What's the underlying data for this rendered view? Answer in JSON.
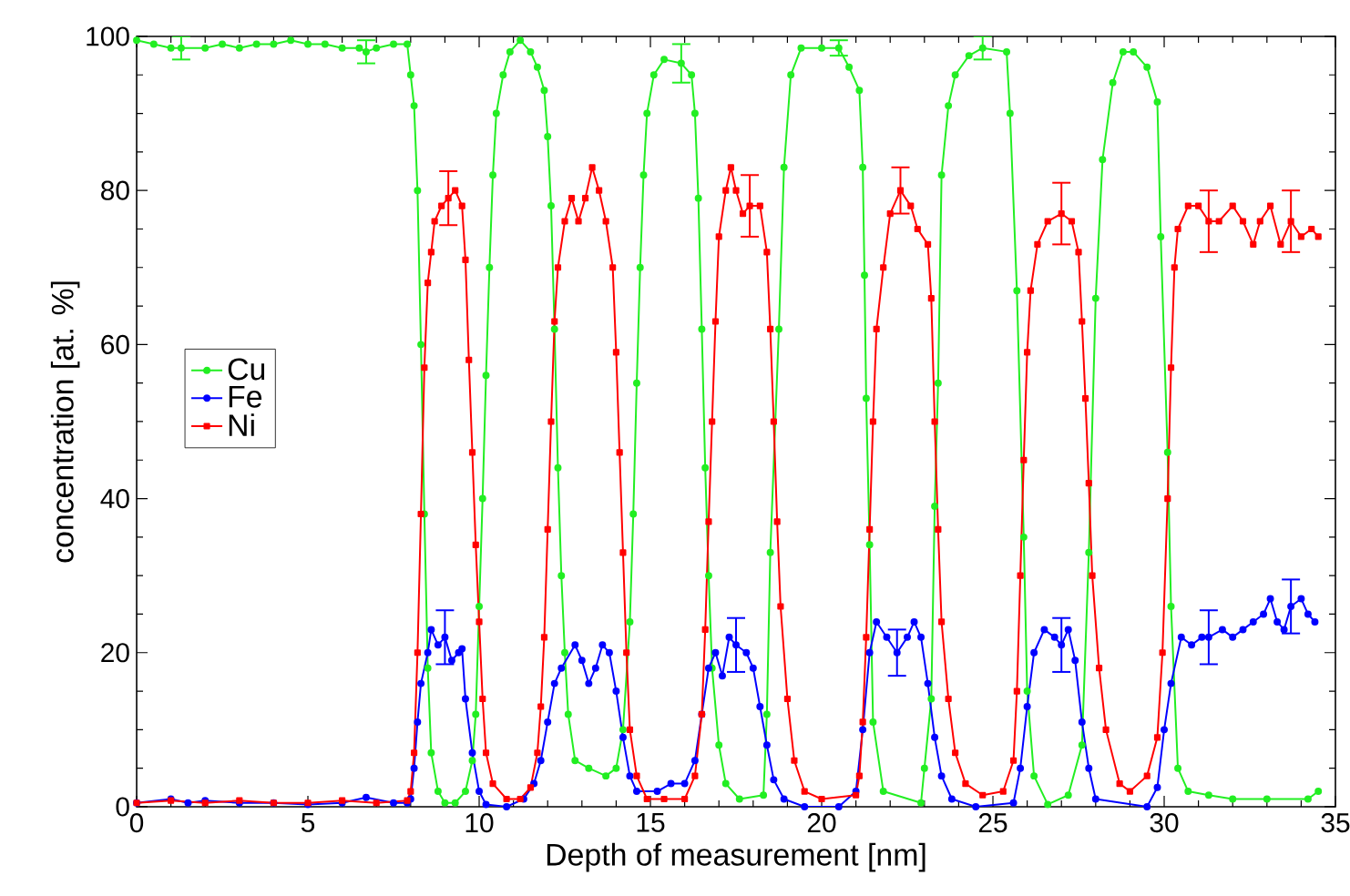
{
  "chart_data": {
    "type": "line",
    "xlabel": "Depth of measurement [nm]",
    "ylabel": "concentration [at. %]",
    "xlim": [
      0,
      35
    ],
    "ylim": [
      0,
      100
    ],
    "xticks": [
      0,
      5,
      10,
      15,
      20,
      25,
      30,
      35
    ],
    "yticks": [
      0,
      20,
      40,
      60,
      80,
      100
    ],
    "legend": "left",
    "series": [
      {
        "name": "Cu",
        "color": "#22ee22",
        "marker": "circle",
        "x": [
          0,
          0.5,
          1.0,
          1.3,
          2.0,
          2.5,
          3.0,
          3.5,
          4.0,
          4.5,
          5.0,
          5.5,
          6.0,
          6.5,
          6.7,
          7.0,
          7.5,
          7.9,
          8.0,
          8.1,
          8.2,
          8.3,
          8.4,
          8.5,
          8.6,
          8.8,
          9.0,
          9.3,
          9.6,
          9.8,
          9.9,
          10.0,
          10.1,
          10.2,
          10.3,
          10.4,
          10.5,
          10.7,
          10.9,
          11.2,
          11.5,
          11.7,
          11.9,
          12.0,
          12.1,
          12.2,
          12.3,
          12.4,
          12.5,
          12.6,
          12.8,
          13.2,
          13.7,
          14.0,
          14.2,
          14.4,
          14.5,
          14.6,
          14.7,
          14.8,
          14.9,
          15.1,
          15.4,
          15.9,
          16.2,
          16.3,
          16.4,
          16.5,
          16.6,
          16.7,
          16.8,
          17.0,
          17.2,
          17.6,
          18.3,
          18.4,
          18.5,
          18.75,
          18.9,
          19.1,
          19.4,
          20.0,
          20.5,
          20.8,
          21.1,
          21.2,
          21.25,
          21.3,
          21.4,
          21.5,
          21.8,
          22.9,
          23.0,
          23.2,
          23.3,
          23.4,
          23.5,
          23.7,
          23.9,
          24.3,
          24.7,
          25.4,
          25.5,
          25.7,
          25.9,
          26.0,
          26.2,
          26.6,
          27.2,
          27.6,
          27.8,
          28.0,
          28.2,
          28.5,
          28.8,
          29.1,
          29.5,
          29.8,
          29.9,
          30.1,
          30.2,
          30.4,
          30.7,
          31.3,
          32.0,
          33.0,
          34.2,
          34.5
        ],
        "values": [
          99.5,
          99,
          98.5,
          98.5,
          98.5,
          99,
          98.5,
          99,
          99,
          99.5,
          99,
          99,
          98.5,
          98.5,
          98,
          98.5,
          99,
          99,
          95,
          91,
          80,
          60,
          38,
          18,
          7,
          2,
          0.5,
          0.5,
          2,
          6,
          12,
          26,
          40,
          56,
          70,
          82,
          90,
          95,
          98,
          99.5,
          98,
          96,
          93,
          87,
          78,
          62,
          44,
          30,
          20,
          12,
          6,
          5,
          4,
          5,
          10,
          24,
          38,
          55,
          70,
          82,
          90,
          95,
          97,
          96.5,
          95,
          90,
          79,
          62,
          44,
          30,
          18,
          8,
          3,
          1,
          1.5,
          12,
          33,
          62,
          83,
          95,
          98.5,
          98.5,
          98.5,
          96,
          93,
          83,
          69,
          53,
          34,
          11,
          2,
          0.5,
          5,
          14,
          39,
          55,
          82,
          91,
          95,
          97.5,
          98.5,
          98,
          90,
          67,
          35,
          15,
          4,
          0.3,
          1.5,
          8,
          33,
          66,
          84,
          94,
          98,
          98,
          96,
          91.5,
          74,
          46,
          26,
          5,
          2,
          1.5,
          1,
          1,
          1,
          2
        ],
        "errors": [
          null,
          null,
          null,
          1.5,
          null,
          null,
          null,
          null,
          null,
          null,
          null,
          null,
          null,
          null,
          1.5,
          null,
          null,
          null,
          null,
          null,
          null,
          null,
          null,
          null,
          null,
          null,
          null,
          null,
          null,
          null,
          null,
          null,
          null,
          null,
          null,
          null,
          null,
          null,
          null,
          null,
          null,
          null,
          null,
          null,
          null,
          null,
          null,
          null,
          null,
          null,
          null,
          null,
          null,
          null,
          null,
          null,
          null,
          null,
          null,
          null,
          null,
          null,
          null,
          2.5,
          null,
          null,
          null,
          null,
          null,
          null,
          null,
          null,
          null,
          null,
          null,
          null,
          null,
          null,
          null,
          null,
          null,
          null,
          1,
          null,
          null,
          null,
          null,
          null,
          null,
          null,
          null,
          null,
          null,
          null,
          null,
          null,
          null,
          null,
          null,
          null,
          1.5,
          null,
          null,
          null,
          null,
          null,
          null,
          null,
          null,
          null,
          null,
          null,
          null,
          null,
          null,
          null,
          null,
          null,
          null,
          null,
          null,
          null,
          null,
          null,
          null,
          null,
          null,
          null
        ]
      },
      {
        "name": "Fe",
        "color": "#0000ff",
        "marker": "circle",
        "x": [
          0,
          1.0,
          1.5,
          2.0,
          3.0,
          4.0,
          5.0,
          6.0,
          6.7,
          7.5,
          7.9,
          8.0,
          8.1,
          8.2,
          8.3,
          8.5,
          8.6,
          8.8,
          9.0,
          9.2,
          9.4,
          9.5,
          9.6,
          9.8,
          10.0,
          10.2,
          10.8,
          11.3,
          11.6,
          11.8,
          12.0,
          12.2,
          12.4,
          12.8,
          13.0,
          13.2,
          13.4,
          13.6,
          13.8,
          14.0,
          14.2,
          14.4,
          14.6,
          15.2,
          15.6,
          16.0,
          16.3,
          16.5,
          16.7,
          16.9,
          17.1,
          17.3,
          17.5,
          17.8,
          18.0,
          18.2,
          18.4,
          18.6,
          18.9,
          19.5,
          20.5,
          21.0,
          21.2,
          21.4,
          21.6,
          21.9,
          22.2,
          22.5,
          22.7,
          22.9,
          23.1,
          23.3,
          23.5,
          23.8,
          24.5,
          25.6,
          25.8,
          26.0,
          26.2,
          26.5,
          26.8,
          27.0,
          27.2,
          27.4,
          27.6,
          27.8,
          28.0,
          29.5,
          29.8,
          30.0,
          30.2,
          30.5,
          30.8,
          31.1,
          31.3,
          31.7,
          32.0,
          32.3,
          32.6,
          32.9,
          33.1,
          33.3,
          33.5,
          33.7,
          34.0,
          34.2,
          34.4
        ],
        "values": [
          0.5,
          1,
          0.5,
          0.8,
          0.5,
          0.5,
          0.3,
          0.5,
          1.2,
          0.5,
          0.5,
          1,
          5,
          11,
          16,
          20,
          23,
          21,
          22,
          19,
          20,
          20.5,
          14,
          7,
          2,
          0.3,
          0,
          1,
          3,
          6,
          11,
          16,
          18,
          21,
          19,
          16,
          18,
          21,
          20,
          15,
          9,
          4,
          2,
          2,
          3,
          3,
          6,
          12,
          18,
          20,
          17,
          22,
          21,
          20,
          18,
          13,
          8,
          3.5,
          1,
          0,
          0,
          2,
          10,
          20,
          24,
          22,
          20,
          22,
          24,
          22,
          16,
          9,
          4,
          1,
          0,
          0.5,
          5,
          13,
          20,
          23,
          22,
          21,
          23,
          19,
          11,
          5,
          1,
          0,
          2.5,
          10,
          16,
          22,
          21,
          22,
          22,
          23,
          22,
          23,
          24,
          25,
          27,
          24,
          23,
          26,
          27,
          25,
          24
        ],
        "errors": [
          null,
          null,
          null,
          null,
          null,
          null,
          null,
          null,
          null,
          null,
          null,
          null,
          null,
          null,
          null,
          null,
          null,
          null,
          3.5,
          null,
          null,
          null,
          null,
          null,
          null,
          null,
          null,
          null,
          null,
          null,
          null,
          null,
          null,
          null,
          null,
          null,
          null,
          null,
          null,
          null,
          null,
          null,
          null,
          null,
          null,
          null,
          null,
          null,
          null,
          null,
          null,
          null,
          3.5,
          null,
          null,
          null,
          null,
          null,
          null,
          null,
          null,
          null,
          null,
          null,
          null,
          null,
          3,
          null,
          null,
          null,
          null,
          null,
          null,
          null,
          null,
          null,
          null,
          null,
          null,
          null,
          null,
          3.5,
          null,
          null,
          null,
          null,
          null,
          null,
          null,
          null,
          null,
          null,
          null,
          null,
          3.5,
          null,
          null,
          null,
          null,
          null,
          null,
          null,
          null,
          3.5,
          null,
          null,
          null
        ]
      },
      {
        "name": "Ni",
        "color": "#ff0000",
        "marker": "square",
        "x": [
          0,
          1.0,
          2.0,
          3.0,
          4.0,
          5.0,
          6.0,
          7.0,
          7.9,
          8.0,
          8.1,
          8.2,
          8.3,
          8.4,
          8.5,
          8.6,
          8.7,
          8.9,
          9.1,
          9.3,
          9.5,
          9.6,
          9.7,
          9.8,
          9.9,
          10.0,
          10.1,
          10.2,
          10.4,
          10.8,
          11.2,
          11.5,
          11.7,
          11.8,
          11.9,
          12.0,
          12.1,
          12.2,
          12.3,
          12.5,
          12.7,
          12.9,
          13.1,
          13.3,
          13.5,
          13.7,
          13.9,
          14.0,
          14.1,
          14.2,
          14.3,
          14.4,
          14.6,
          14.9,
          15.4,
          16.0,
          16.3,
          16.5,
          16.6,
          16.7,
          16.8,
          16.9,
          17.0,
          17.2,
          17.35,
          17.5,
          17.7,
          17.9,
          18.2,
          18.4,
          18.5,
          18.6,
          18.7,
          18.8,
          19.0,
          19.2,
          19.5,
          20.0,
          21.0,
          21.1,
          21.2,
          21.3,
          21.4,
          21.5,
          21.6,
          21.8,
          22.0,
          22.3,
          22.6,
          22.8,
          23.1,
          23.2,
          23.3,
          23.4,
          23.5,
          23.7,
          23.9,
          24.2,
          24.7,
          25.3,
          25.6,
          25.7,
          25.8,
          25.9,
          26.0,
          26.1,
          26.3,
          26.6,
          27.0,
          27.3,
          27.5,
          27.6,
          27.7,
          27.8,
          27.9,
          28.1,
          28.3,
          28.7,
          29.0,
          29.5,
          29.8,
          29.95,
          30.1,
          30.2,
          30.3,
          30.4,
          30.7,
          31.0,
          31.3,
          31.6,
          32.0,
          32.3,
          32.6,
          32.8,
          33.1,
          33.4,
          33.7,
          34.0,
          34.3,
          34.5
        ],
        "values": [
          0.5,
          0.8,
          0.5,
          0.8,
          0.5,
          0.5,
          0.8,
          0.5,
          0.8,
          2,
          7,
          20,
          38,
          57,
          68,
          72,
          76,
          78,
          79,
          80,
          78,
          71,
          58,
          46,
          34,
          24,
          14,
          7,
          3,
          1,
          1,
          2.5,
          7,
          13,
          22,
          36,
          50,
          63,
          70,
          76,
          79,
          76,
          79,
          83,
          80,
          76,
          70,
          59,
          46,
          33,
          20,
          10,
          4,
          1,
          1,
          1,
          4,
          12,
          23,
          37,
          50,
          63,
          74,
          80,
          83,
          80,
          77,
          78,
          78,
          72,
          62,
          50,
          37,
          26,
          14,
          6,
          2,
          1,
          1.5,
          4,
          11,
          22,
          36,
          50,
          62,
          70,
          77,
          80,
          78,
          75,
          73,
          66,
          50,
          36,
          24,
          14,
          7,
          3,
          1.5,
          2,
          6,
          15,
          30,
          45,
          59,
          67,
          73,
          76,
          77,
          76,
          72,
          63,
          53,
          42,
          30,
          18,
          10,
          3,
          2,
          4,
          9,
          20,
          40,
          57,
          70,
          75,
          78,
          78,
          76,
          76,
          78,
          76,
          73,
          76,
          78,
          73,
          76,
          74,
          75,
          74
        ],
        "errors": [
          null,
          null,
          null,
          null,
          null,
          null,
          null,
          null,
          null,
          null,
          null,
          null,
          null,
          null,
          null,
          null,
          null,
          null,
          3.5,
          null,
          null,
          null,
          null,
          null,
          null,
          null,
          null,
          null,
          null,
          null,
          null,
          null,
          null,
          null,
          null,
          null,
          null,
          null,
          null,
          null,
          null,
          null,
          null,
          null,
          null,
          null,
          null,
          null,
          null,
          null,
          null,
          null,
          null,
          null,
          null,
          null,
          null,
          null,
          null,
          null,
          null,
          null,
          null,
          null,
          null,
          null,
          null,
          4,
          null,
          null,
          null,
          null,
          null,
          null,
          null,
          null,
          null,
          null,
          null,
          null,
          null,
          null,
          null,
          null,
          null,
          null,
          null,
          3,
          null,
          null,
          null,
          null,
          null,
          null,
          null,
          null,
          null,
          null,
          null,
          null,
          null,
          null,
          null,
          null,
          null,
          null,
          null,
          null,
          4,
          null,
          null,
          null,
          null,
          null,
          null,
          null,
          null,
          null,
          null,
          null,
          null,
          null,
          null,
          null,
          null,
          null,
          null,
          null,
          4,
          null,
          null,
          null,
          null,
          null,
          null,
          null,
          4,
          null,
          null,
          null
        ]
      }
    ]
  }
}
